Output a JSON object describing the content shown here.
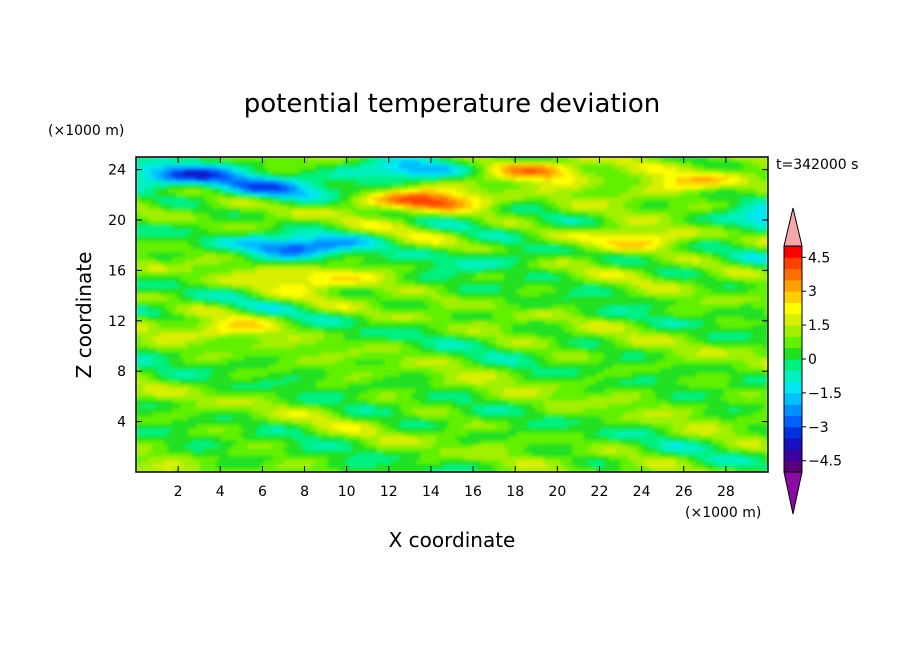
{
  "chart_data": {
    "type": "heatmap",
    "title": "potential temperature deviation",
    "xlabel": "X coordinate",
    "ylabel": "Z coordinate",
    "x_unit": "(×1000 m)",
    "y_unit": "(×1000 m)",
    "time_label": "t=342000 s",
    "xlim": [
      0,
      30
    ],
    "ylim": [
      0,
      25
    ],
    "x_ticks": [
      2,
      4,
      6,
      8,
      10,
      12,
      14,
      16,
      18,
      20,
      22,
      24,
      26,
      28
    ],
    "y_ticks": [
      4,
      8,
      12,
      16,
      20,
      24
    ],
    "colorbar": {
      "min": -5,
      "max": 5,
      "step": 0.5,
      "extend": "both",
      "tick_values": [
        4.5,
        3,
        1.5,
        0,
        -1.5,
        -3,
        -4.5
      ],
      "tick_labels": [
        "4.5",
        "3",
        "1.5",
        "0",
        "−1.5",
        "−3",
        "−4.5"
      ],
      "colors": [
        "#5a007a",
        "#3c00a0",
        "#1a10c0",
        "#0030e0",
        "#0060ff",
        "#0090ff",
        "#00c0ff",
        "#00e8f0",
        "#00f0c0",
        "#00f080",
        "#20e020",
        "#60f000",
        "#a0f000",
        "#d8f000",
        "#ffff00",
        "#ffd000",
        "#ffa000",
        "#ff7000",
        "#ff4000",
        "#ff0000"
      ],
      "over_color": "#f4a8a8",
      "under_color": "#8a0aa8"
    },
    "field_features": [
      {
        "x": 13.5,
        "z": 21.5,
        "value": 4.0
      },
      {
        "x": 19.5,
        "z": 24.0,
        "value": 3.0
      },
      {
        "x": 23.5,
        "z": 18.5,
        "value": 2.5
      },
      {
        "x": 9.0,
        "z": 15.5,
        "value": 2.0
      },
      {
        "x": 4.5,
        "z": 11.5,
        "value": 1.5
      },
      {
        "x": 26.0,
        "z": 23.0,
        "value": 2.5
      },
      {
        "x": 2.0,
        "z": 23.5,
        "value": -3.5
      },
      {
        "x": 8.0,
        "z": 18.0,
        "value": -3.5
      },
      {
        "x": 13.0,
        "z": 24.0,
        "value": -3.0
      },
      {
        "x": 6.5,
        "z": 22.5,
        "value": -2.5
      },
      {
        "x": 17.0,
        "z": 17.0,
        "value": -1.5
      },
      {
        "x": 30.0,
        "z": 20.0,
        "value": -2.5
      }
    ]
  }
}
